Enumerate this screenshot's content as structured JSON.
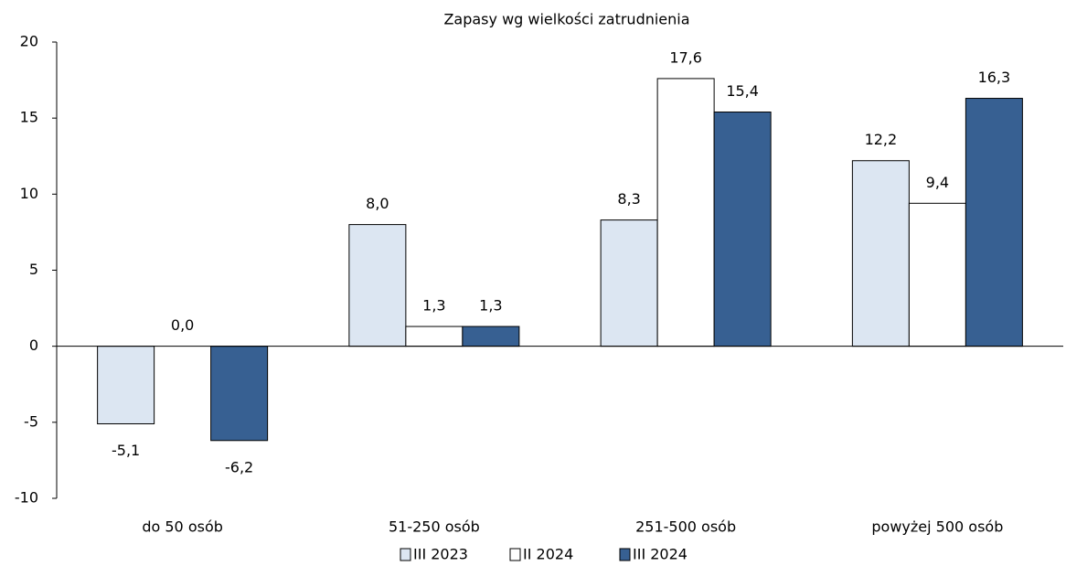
{
  "chart_data": {
    "type": "bar",
    "title": "Zapasy wg wielkości zatrudnienia",
    "categories": [
      "do 50 osób",
      "51-250 osób",
      "251-500 osób",
      "powyżej 500 osób"
    ],
    "series": [
      {
        "name": "III 2023",
        "color": "#dce6f2",
        "values": [
          -5.1,
          8.0,
          8.3,
          12.2
        ],
        "value_labels": [
          "-5,1",
          "8,0",
          "8,3",
          "12,2"
        ]
      },
      {
        "name": "II 2024",
        "color": "#ffffff",
        "values": [
          0.0,
          1.3,
          17.6,
          9.4
        ],
        "value_labels": [
          "0,0",
          "1,3",
          "17,6",
          "9,4"
        ]
      },
      {
        "name": "III 2024",
        "color": "#376092",
        "values": [
          -6.2,
          1.3,
          15.4,
          16.3
        ],
        "value_labels": [
          "-6,2",
          "1,3",
          "15,4",
          "16,3"
        ]
      }
    ],
    "ylim": [
      -10,
      20
    ],
    "yticks": [
      20,
      15,
      10,
      5,
      0,
      -5,
      -10
    ],
    "legend": "bottom"
  }
}
